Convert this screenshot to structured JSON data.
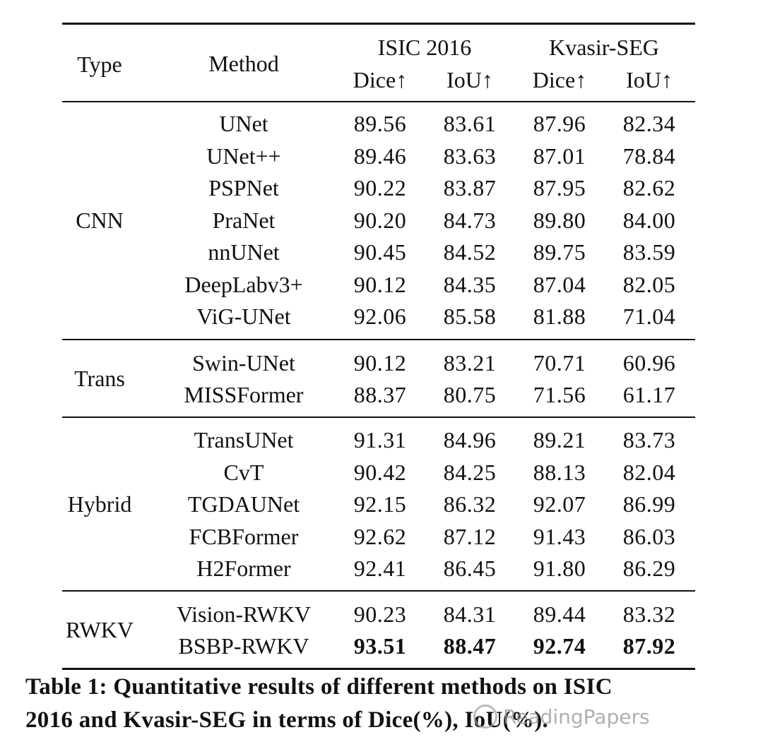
{
  "table": {
    "headers": {
      "type": "Type",
      "method": "Method",
      "dataset_1": "ISIC 2016",
      "dataset_2": "Kvasir-SEG",
      "metrics": [
        "Dice↑",
        "IoU↑",
        "Dice↑",
        "IoU↑"
      ]
    },
    "groups": [
      {
        "type": "CNN",
        "rows": [
          {
            "method": "UNet",
            "values": [
              "89.56",
              "83.61",
              "87.96",
              "82.34"
            ]
          },
          {
            "method": "UNet++",
            "values": [
              "89.46",
              "83.63",
              "87.01",
              "78.84"
            ]
          },
          {
            "method": "PSPNet",
            "values": [
              "90.22",
              "83.87",
              "87.95",
              "82.62"
            ]
          },
          {
            "method": "PraNet",
            "values": [
              "90.20",
              "84.73",
              "89.80",
              "84.00"
            ]
          },
          {
            "method": "nnUNet",
            "values": [
              "90.45",
              "84.52",
              "89.75",
              "83.59"
            ]
          },
          {
            "method": "DeepLabv3+",
            "values": [
              "90.12",
              "84.35",
              "87.04",
              "82.05"
            ]
          },
          {
            "method": "ViG-UNet",
            "values": [
              "92.06",
              "85.58",
              "81.88",
              "71.04"
            ]
          }
        ]
      },
      {
        "type": "Trans",
        "rows": [
          {
            "method": "Swin-UNet",
            "values": [
              "90.12",
              "83.21",
              "70.71",
              "60.96"
            ]
          },
          {
            "method": "MISSFormer",
            "values": [
              "88.37",
              "80.75",
              "71.56",
              "61.17"
            ]
          }
        ]
      },
      {
        "type": "Hybrid",
        "rows": [
          {
            "method": "TransUNet",
            "values": [
              "91.31",
              "84.96",
              "89.21",
              "83.73"
            ]
          },
          {
            "method": "CvT",
            "values": [
              "90.42",
              "84.25",
              "88.13",
              "82.04"
            ]
          },
          {
            "method": "TGDAUNet",
            "values": [
              "92.15",
              "86.32",
              "92.07",
              "86.99"
            ]
          },
          {
            "method": "FCBFormer",
            "values": [
              "92.62",
              "87.12",
              "91.43",
              "86.03"
            ]
          },
          {
            "method": "H2Former",
            "values": [
              "92.41",
              "86.45",
              "91.80",
              "86.29"
            ]
          }
        ]
      },
      {
        "type": "RWKV",
        "rows": [
          {
            "method": "Vision-RWKV",
            "values": [
              "90.23",
              "84.31",
              "89.44",
              "83.32"
            ]
          },
          {
            "method": "BSBP-RWKV",
            "values": [
              "93.51",
              "88.47",
              "92.74",
              "87.92"
            ],
            "bold": true
          }
        ]
      }
    ]
  },
  "caption": {
    "line1": "Table 1: Quantitative results of different methods on ISIC",
    "line2": "2016 and Kvasir-SEG in terms of Dice(%), IoU(%)."
  },
  "watermark": {
    "text": "ReadingPapers",
    "icon": "wechat-logo-icon"
  }
}
